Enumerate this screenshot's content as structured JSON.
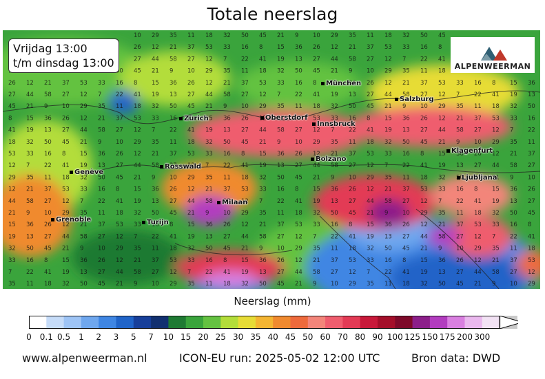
{
  "title": "Totale neerslag",
  "period": {
    "line1": "Vrijdag 13:00",
    "line2": "t/m dinsdag 13:00"
  },
  "logo": {
    "text": "ALPENWEERMAN",
    "icon": "mountain-logo-icon",
    "colors": [
      "#2f5f73",
      "#c0392b",
      "#7a9aa6"
    ]
  },
  "cities": [
    {
      "name": "München"
    },
    {
      "name": "Salzburg"
    },
    {
      "name": "Zürich"
    },
    {
      "name": "Oberstdorf"
    },
    {
      "name": "Innsbruck"
    },
    {
      "name": "Klagenfurt"
    },
    {
      "name": "Genève"
    },
    {
      "name": "Rosswald"
    },
    {
      "name": "Bolzano"
    },
    {
      "name": "Ljubljana"
    },
    {
      "name": "Milaan"
    },
    {
      "name": "Grenoble"
    },
    {
      "name": "Turijn"
    }
  ],
  "legend": {
    "title": "Neerslag (mm)",
    "ticks": [
      "0",
      "0.1",
      "0.5",
      "1",
      "2",
      "3",
      "5",
      "7",
      "10",
      "15",
      "20",
      "25",
      "30",
      "35",
      "40",
      "45",
      "50",
      "60",
      "70",
      "80",
      "90",
      "100",
      "125",
      "150",
      "175",
      "200",
      "300"
    ],
    "colors": [
      "#ffffff",
      "#c6dcf8",
      "#9ec4f5",
      "#6fa7ee",
      "#3f86e3",
      "#2064c8",
      "#173f9a",
      "#123070",
      "#1f7a33",
      "#3aa43c",
      "#64c241",
      "#b3dd3a",
      "#e7dc36",
      "#f4b532",
      "#f08a2f",
      "#ee6a3c",
      "#f3857a",
      "#ef5d6e",
      "#e33a55",
      "#c8193a",
      "#a40f2a",
      "#7e0a2a",
      "#8c1f8a",
      "#b23cbf",
      "#d97fe0",
      "#eab8ee",
      "#f2e2f4",
      "#c9c9c9"
    ]
  },
  "footer": {
    "site": "www.alpenweerman.nl",
    "run": "ICON-EU run: 2025-05-02 12:00 UTC",
    "source": "Bron data: DWD"
  }
}
